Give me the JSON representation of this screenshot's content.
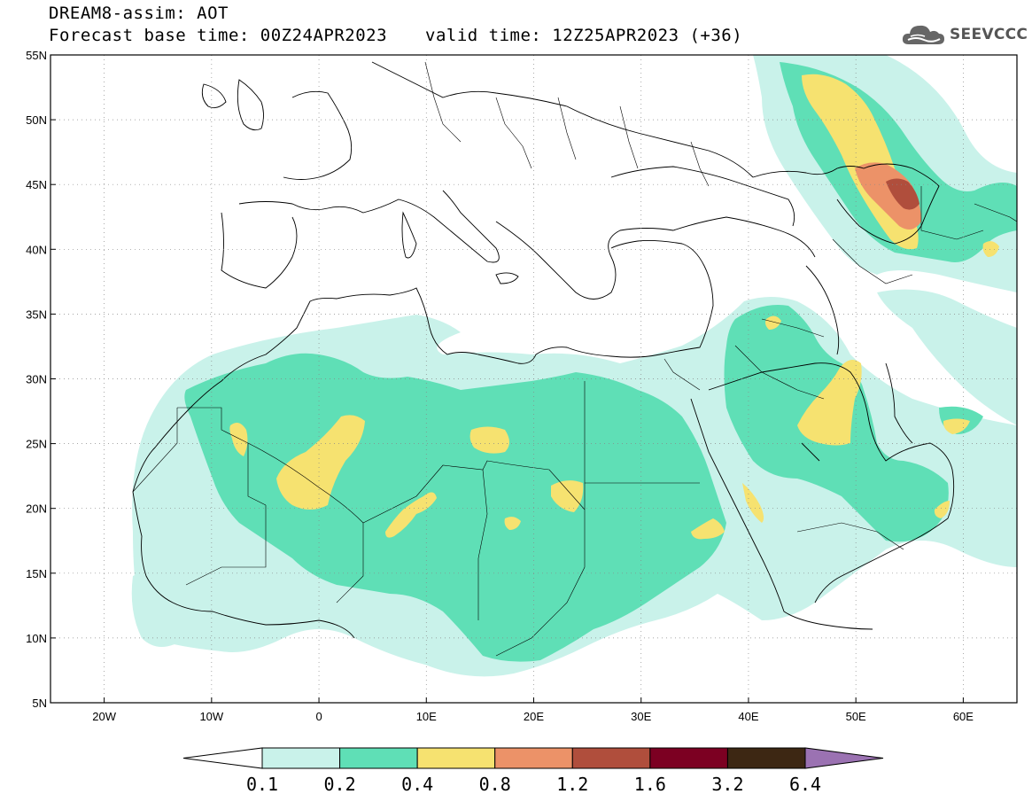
{
  "header": {
    "model_line": "DREAM8-assim: AOT",
    "base_time_line": "Forecast base time: 00Z24APR2023",
    "valid_time_line": "valid time: 12Z25APR2023 (+36)",
    "logo_text": "SEEVCCC"
  },
  "map": {
    "lon_range": [
      -25,
      65
    ],
    "lat_range": [
      5,
      55
    ],
    "x_ticks": [
      {
        "lon": -20,
        "label": "20W"
      },
      {
        "lon": -10,
        "label": "10W"
      },
      {
        "lon": 0,
        "label": "0"
      },
      {
        "lon": 10,
        "label": "10E"
      },
      {
        "lon": 20,
        "label": "20E"
      },
      {
        "lon": 30,
        "label": "30E"
      },
      {
        "lon": 40,
        "label": "40E"
      },
      {
        "lon": 50,
        "label": "50E"
      },
      {
        "lon": 60,
        "label": "60E"
      }
    ],
    "y_ticks": [
      {
        "lat": 55,
        "label": "55N"
      },
      {
        "lat": 50,
        "label": "50N"
      },
      {
        "lat": 45,
        "label": "45N"
      },
      {
        "lat": 40,
        "label": "40N"
      },
      {
        "lat": 35,
        "label": "35N"
      },
      {
        "lat": 30,
        "label": "30N"
      },
      {
        "lat": 25,
        "label": "25N"
      },
      {
        "lat": 20,
        "label": "20N"
      },
      {
        "lat": 15,
        "label": "15N"
      },
      {
        "lat": 10,
        "label": "10N"
      },
      {
        "lat": 5,
        "label": "5N"
      }
    ],
    "grid": true
  },
  "legend": {
    "bins": [
      {
        "from": 0.1,
        "to": 0.2,
        "color": "#c9f2ea"
      },
      {
        "from": 0.2,
        "to": 0.4,
        "color": "#5fdfb6"
      },
      {
        "from": 0.4,
        "to": 0.8,
        "color": "#f6e270"
      },
      {
        "from": 0.8,
        "to": 1.2,
        "color": "#ec9268"
      },
      {
        "from": 1.2,
        "to": 1.6,
        "color": "#b04e3c"
      },
      {
        "from": 1.6,
        "to": 3.2,
        "color": "#7c0022"
      },
      {
        "from": 3.2,
        "to": 6.4,
        "color": "#3d2713"
      }
    ],
    "low_end_color": "#ffffff",
    "high_end_color": "#9b72b2",
    "labels": [
      "0.1",
      "0.2",
      "0.4",
      "0.8",
      "1.2",
      "1.6",
      "3.2",
      "6.4"
    ]
  }
}
